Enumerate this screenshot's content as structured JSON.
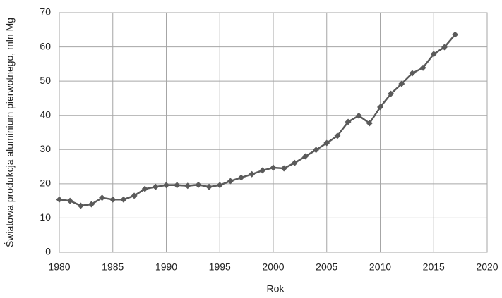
{
  "chart_data": {
    "type": "line",
    "x_label": "Rok",
    "y_label": "Światowa produkcja aluminium pierwotnego, mln Mg",
    "x": [
      1980,
      1981,
      1982,
      1983,
      1984,
      1985,
      1986,
      1987,
      1988,
      1989,
      1990,
      1991,
      1992,
      1993,
      1994,
      1995,
      1996,
      1997,
      1998,
      1999,
      2000,
      2001,
      2002,
      2003,
      2004,
      2005,
      2006,
      2007,
      2008,
      2009,
      2010,
      2011,
      2012,
      2013,
      2014,
      2015,
      2016,
      2017
    ],
    "series": [
      {
        "color": "#5a5a5a",
        "values": [
          15.4,
          15.0,
          13.6,
          14.0,
          15.9,
          15.4,
          15.4,
          16.5,
          18.5,
          19.1,
          19.6,
          19.6,
          19.4,
          19.7,
          19.1,
          19.6,
          20.8,
          21.8,
          22.8,
          23.9,
          24.7,
          24.5,
          26.1,
          28.0,
          29.9,
          31.9,
          34.0,
          38.1,
          39.9,
          37.7,
          42.4,
          46.3,
          49.2,
          52.3,
          53.9,
          57.9,
          59.9,
          63.6
        ]
      }
    ],
    "xlim": [
      1980,
      2020
    ],
    "xticks": [
      1980,
      1985,
      1990,
      1995,
      2000,
      2005,
      2010,
      2015,
      2020
    ],
    "ylim": [
      0,
      70
    ],
    "yticks": [
      0,
      10,
      20,
      30,
      40,
      50,
      60,
      70
    ],
    "grid": true
  }
}
